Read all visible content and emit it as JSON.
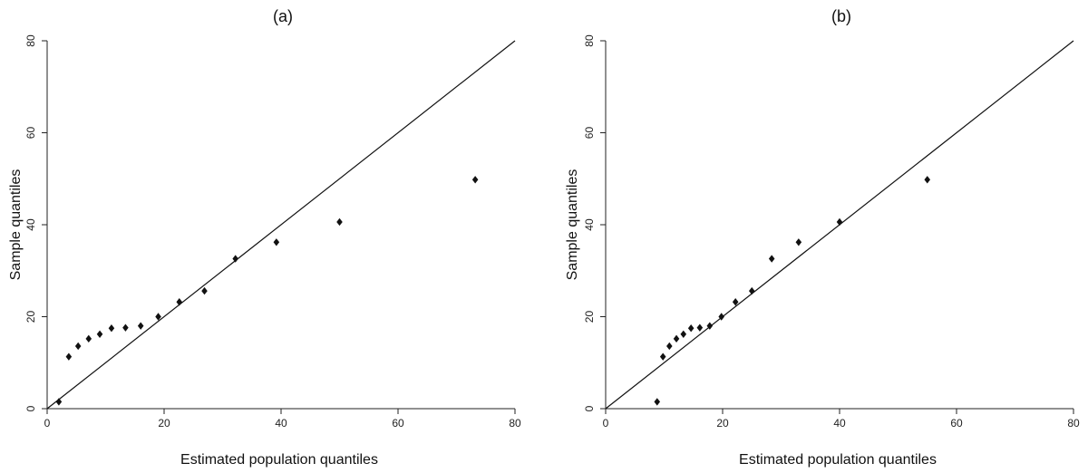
{
  "chart_data": [
    {
      "type": "scatter",
      "title": "(a)",
      "xlabel": "Estimated population quantiles",
      "ylabel": "Sample quantiles",
      "xlim": [
        0,
        80
      ],
      "ylim": [
        0,
        80
      ],
      "xticks": [
        0,
        20,
        40,
        60,
        80
      ],
      "yticks": [
        0,
        20,
        40,
        60,
        80
      ],
      "reference_line": {
        "intercept": 0,
        "slope": 1
      },
      "points": [
        {
          "x": 2.0,
          "y": 1.5
        },
        {
          "x": 3.7,
          "y": 11.3
        },
        {
          "x": 5.3,
          "y": 13.6
        },
        {
          "x": 7.1,
          "y": 15.2
        },
        {
          "x": 9.0,
          "y": 16.2
        },
        {
          "x": 11.0,
          "y": 17.5
        },
        {
          "x": 13.4,
          "y": 17.6
        },
        {
          "x": 16.0,
          "y": 18.0
        },
        {
          "x": 19.0,
          "y": 20.0
        },
        {
          "x": 22.6,
          "y": 23.2
        },
        {
          "x": 26.9,
          "y": 25.6
        },
        {
          "x": 32.2,
          "y": 32.6
        },
        {
          "x": 39.2,
          "y": 36.2
        },
        {
          "x": 50.0,
          "y": 40.6
        },
        {
          "x": 73.2,
          "y": 49.8
        }
      ]
    },
    {
      "type": "scatter",
      "title": "(b)",
      "xlabel": "Estimated population quantiles",
      "ylabel": "Sample quantiles",
      "xlim": [
        0,
        80
      ],
      "ylim": [
        0,
        80
      ],
      "xticks": [
        0,
        20,
        40,
        60,
        80
      ],
      "yticks": [
        0,
        20,
        40,
        60,
        80
      ],
      "reference_line": {
        "intercept": 0,
        "slope": 1
      },
      "points": [
        {
          "x": 8.8,
          "y": 1.5
        },
        {
          "x": 9.8,
          "y": 11.3
        },
        {
          "x": 10.9,
          "y": 13.6
        },
        {
          "x": 12.1,
          "y": 15.2
        },
        {
          "x": 13.3,
          "y": 16.2
        },
        {
          "x": 14.6,
          "y": 17.5
        },
        {
          "x": 16.1,
          "y": 17.6
        },
        {
          "x": 17.8,
          "y": 18.0
        },
        {
          "x": 19.8,
          "y": 20.0
        },
        {
          "x": 22.2,
          "y": 23.2
        },
        {
          "x": 25.0,
          "y": 25.6
        },
        {
          "x": 28.4,
          "y": 32.6
        },
        {
          "x": 33.0,
          "y": 36.2
        },
        {
          "x": 40.0,
          "y": 40.6
        },
        {
          "x": 55.0,
          "y": 49.8
        }
      ]
    }
  ]
}
